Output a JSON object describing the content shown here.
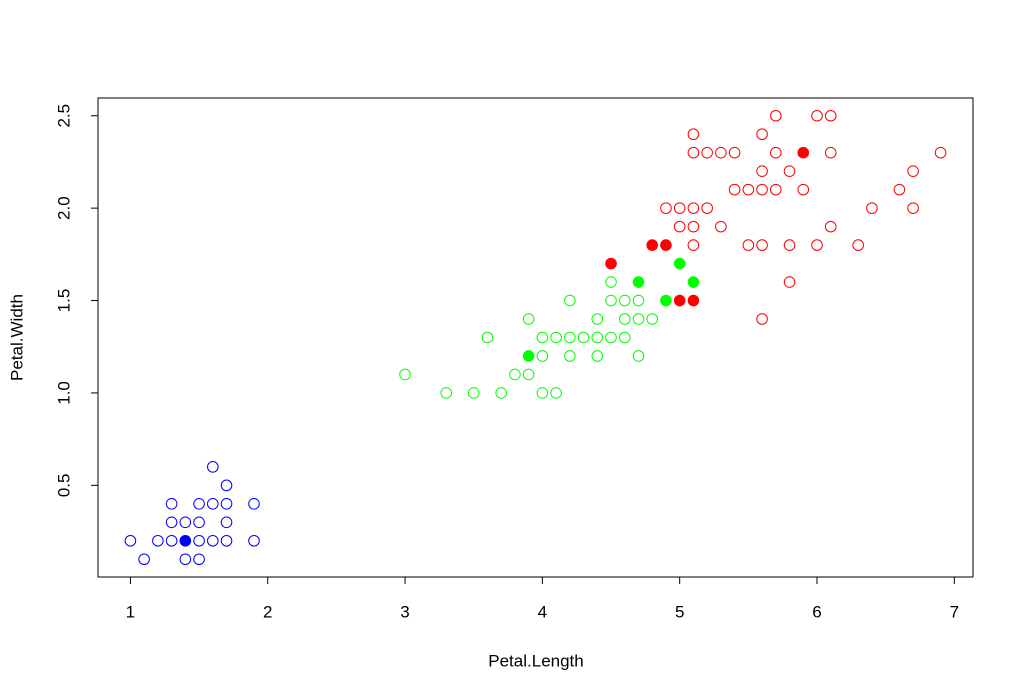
{
  "chart_data": {
    "type": "scatter",
    "x_label": "Petal.Length",
    "y_label": "Petal.Width",
    "xlim": [
      0.764,
      7.136
    ],
    "ylim": [
      0.004,
      2.596
    ],
    "xticks": [
      1,
      2,
      3,
      4,
      5,
      6,
      7
    ],
    "yticks": [
      0.5,
      {
        "value": 1,
        "label": "1.0"
      },
      1.5,
      {
        "value": 2,
        "label": "2.0"
      },
      2.5
    ],
    "grid": false,
    "series": [
      {
        "color": "#0000ff",
        "filled": false,
        "x": [
          1.3,
          1.5,
          1.7,
          1.4,
          1.5,
          1.6,
          1.4,
          1.1,
          1.2,
          1.5,
          1.3,
          1.7,
          1.5,
          1.7,
          1.0,
          1.7,
          1.9,
          1.6,
          1.3,
          1.6,
          1.9
        ],
        "values": [
          0.2,
          0.2,
          0.4,
          0.3,
          0.1,
          0.2,
          0.1,
          0.1,
          0.2,
          0.4,
          0.4,
          0.3,
          0.3,
          0.2,
          0.2,
          0.5,
          0.2,
          0.4,
          0.3,
          0.6,
          0.4
        ]
      },
      {
        "color": "#0000ff",
        "filled": true,
        "x": [
          1.4
        ],
        "values": [
          0.2
        ]
      },
      {
        "color": "#00ff00",
        "filled": false,
        "x": [
          4.7,
          4.5,
          4.0,
          4.6,
          4.5,
          3.3,
          4.6,
          3.9,
          3.5,
          4.2,
          4.0,
          3.6,
          4.4,
          4.1,
          3.9,
          4.7,
          4.3,
          4.8,
          3.8,
          3.7,
          4.5,
          4.7,
          4.4,
          4.1,
          4.4,
          4.6,
          4.0,
          4.2,
          4.2,
          3.0
        ],
        "values": [
          1.4,
          1.5,
          1.3,
          1.5,
          1.3,
          1.0,
          1.3,
          1.4,
          1.0,
          1.5,
          1.0,
          1.3,
          1.4,
          1.0,
          1.1,
          1.2,
          1.3,
          1.4,
          1.1,
          1.0,
          1.6,
          1.5,
          1.3,
          1.3,
          1.2,
          1.4,
          1.2,
          1.3,
          1.2,
          1.1
        ]
      },
      {
        "color": "#00ff00",
        "filled": true,
        "x": [
          3.9,
          4.7,
          5.0,
          4.9,
          5.1
        ],
        "values": [
          1.2,
          1.6,
          1.7,
          1.5,
          1.6
        ]
      },
      {
        "color": "#ff0000",
        "filled": false,
        "x": [
          6.0,
          5.1,
          5.9,
          5.6,
          5.8,
          6.6,
          6.3,
          5.8,
          6.1,
          5.1,
          5.3,
          5.5,
          5.0,
          5.1,
          5.3,
          5.5,
          6.7,
          6.9,
          5.7,
          4.9,
          6.7,
          5.7,
          6.0,
          5.6,
          5.8,
          6.1,
          6.4,
          5.6,
          5.6,
          6.1,
          5.6,
          5.4,
          5.1,
          5.7,
          5.2,
          5.0,
          5.2,
          5.4,
          5.1
        ],
        "values": [
          2.5,
          1.9,
          2.1,
          1.8,
          2.2,
          2.1,
          1.8,
          1.8,
          2.5,
          2.0,
          1.9,
          2.1,
          2.0,
          2.4,
          2.3,
          1.8,
          2.2,
          2.3,
          2.3,
          2.0,
          2.0,
          2.1,
          1.8,
          2.1,
          1.6,
          1.9,
          2.0,
          2.2,
          1.4,
          2.3,
          2.4,
          2.1,
          2.3,
          2.5,
          2.3,
          1.9,
          2.0,
          2.3,
          1.8
        ]
      },
      {
        "color": "#ff0000",
        "filled": true,
        "x": [
          4.5,
          4.8,
          4.9,
          5.0,
          5.1,
          5.9
        ],
        "values": [
          1.7,
          1.8,
          1.8,
          1.5,
          1.5,
          2.3
        ]
      }
    ]
  }
}
